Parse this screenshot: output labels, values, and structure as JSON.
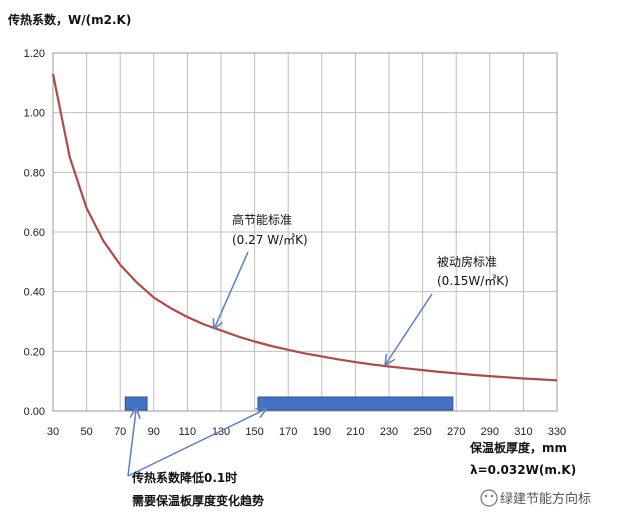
{
  "chart_data": {
    "type": "line",
    "ylabel": "传热系数，W/(m2.K)",
    "xlabel": "保温板厚度，mm",
    "xlabel_note": "λ=0.032W(m.K)",
    "xlim": [
      30,
      330
    ],
    "ylim": [
      0,
      1.2
    ],
    "xticks": [
      "30",
      "50",
      "70",
      "90",
      "110",
      "130",
      "150",
      "170",
      "190",
      "210",
      "230",
      "250",
      "270",
      "290",
      "310",
      "330"
    ],
    "yticks": [
      "0.00",
      "0.20",
      "0.40",
      "0.60",
      "0.80",
      "1.00",
      "1.20"
    ],
    "grid": true,
    "legend": "none",
    "series": [
      {
        "color": "#b04a4a",
        "x": [
          30,
          40,
          50,
          60,
          70,
          80,
          90,
          100,
          110,
          120,
          130,
          140,
          150,
          160,
          170,
          180,
          190,
          200,
          210,
          220,
          230,
          240,
          250,
          260,
          270,
          280,
          290,
          300,
          310,
          320,
          330
        ],
        "y": [
          1.13,
          0.85,
          0.68,
          0.57,
          0.49,
          0.43,
          0.38,
          0.345,
          0.315,
          0.29,
          0.27,
          0.25,
          0.233,
          0.218,
          0.205,
          0.193,
          0.183,
          0.173,
          0.164,
          0.156,
          0.149,
          0.143,
          0.137,
          0.131,
          0.126,
          0.121,
          0.117,
          0.113,
          0.109,
          0.106,
          0.103
        ]
      }
    ],
    "bars": [
      {
        "x_start": 73,
        "x_end": 86,
        "color": "#4472c4"
      },
      {
        "x_start": 152,
        "x_end": 268,
        "color": "#4472c4"
      }
    ],
    "annotations": [
      {
        "title": "高节能标准",
        "sub": "(0.27 W/㎡K)",
        "target_x": 126,
        "target_y": 0.27
      },
      {
        "title": "被动房标准",
        "sub": "(0.15W/㎡K)",
        "target_x": 228,
        "target_y": 0.15
      }
    ],
    "bottom_note": [
      "传热系数降低0.1时",
      "需要保温板厚度变化趋势"
    ]
  },
  "watermark": "绿建节能方向标",
  "colors": {
    "line": "#b04a4a",
    "bar": "#4472c4",
    "grid": "#bfbfbf"
  }
}
